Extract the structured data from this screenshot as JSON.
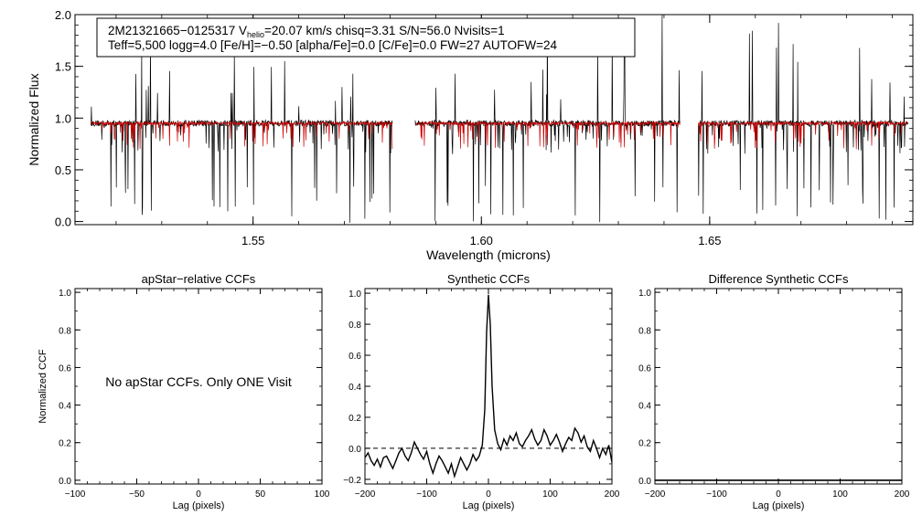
{
  "chart_data": [
    {
      "type": "line",
      "id": "spectrum",
      "xlabel": "Wavelength (microns)",
      "ylabel": "Normalized Flux",
      "xlim": [
        1.511,
        1.6945
      ],
      "ylim": [
        -0.03,
        2.0
      ],
      "xticks": [
        1.55,
        1.6,
        1.65
      ],
      "xtick_labels": [
        "1.55",
        "1.60",
        "1.65"
      ],
      "yticks": [
        0.0,
        0.5,
        1.0,
        1.5,
        2.0
      ],
      "ytick_labels": [
        "0.0",
        "0.5",
        "1.0",
        "1.5",
        "2.0"
      ],
      "chips": [
        [
          1.5145,
          1.5805
        ],
        [
          1.5855,
          1.6435
        ],
        [
          1.6475,
          1.6935
        ]
      ],
      "series": [
        {
          "name": "observed",
          "color": "#000000",
          "level": 0.95,
          "noise": 0.03
        },
        {
          "name": "synthetic",
          "color": "#d00000",
          "level": 0.95,
          "noise": 0.015
        }
      ],
      "annotation": {
        "line1_a": "2M21321665−0125317  V",
        "line1_sub": "helio",
        "line1_b": "=20.07 km/s  chisq=3.31  S/N=56.0  Nvisits=1",
        "line2": "Teff=5,500 logg=4.0 [Fe/H]=−0.50 [alpha/Fe]=0.0 [C/Fe]=0.0 FW=27 AUTOFW=24"
      }
    },
    {
      "type": "line",
      "id": "apstar-ccf",
      "title": "apStar−relative CCFs",
      "xlabel": "Lag (pixels)",
      "ylabel": "Normalized CCF",
      "xlim": [
        -100,
        100
      ],
      "ylim": [
        -0.02,
        1.02
      ],
      "xticks": [
        -100,
        -50,
        0,
        50,
        100
      ],
      "xtick_labels": [
        "−100",
        "−50",
        "0",
        "50",
        "100"
      ],
      "yticks": [
        0.0,
        0.2,
        0.4,
        0.6,
        0.8,
        1.0
      ],
      "ytick_labels": [
        "0.0",
        "0.2",
        "0.4",
        "0.6",
        "0.8",
        "1.0"
      ],
      "message": "No apStar CCFs.  Only ONE Visit"
    },
    {
      "type": "line",
      "id": "synthetic-ccf",
      "title": "Synthetic CCFs",
      "xlabel": "Lag (pixels)",
      "xlim": [
        -200,
        200
      ],
      "ylim": [
        -0.23,
        1.03
      ],
      "xticks": [
        -200,
        -100,
        0,
        100,
        200
      ],
      "xtick_labels": [
        "−200",
        "−100",
        "0",
        "100",
        "200"
      ],
      "yticks": [
        -0.2,
        0.0,
        0.2,
        0.4,
        0.6,
        0.8,
        1.0
      ],
      "ytick_labels": [
        "−0.2",
        "0.0",
        "0.2",
        "0.4",
        "0.6",
        "0.8",
        "1.0"
      ],
      "zero_line": 0.0,
      "series": [
        {
          "name": "ccf",
          "points": [
            [
              -200,
              -0.06
            ],
            [
              -195,
              -0.03
            ],
            [
              -190,
              -0.08
            ],
            [
              -185,
              -0.11
            ],
            [
              -180,
              -0.07
            ],
            [
              -175,
              -0.12
            ],
            [
              -170,
              -0.06
            ],
            [
              -165,
              -0.05
            ],
            [
              -160,
              -0.09
            ],
            [
              -155,
              -0.13
            ],
            [
              -150,
              -0.08
            ],
            [
              -145,
              -0.03
            ],
            [
              -140,
              0.0
            ],
            [
              -135,
              -0.05
            ],
            [
              -130,
              -0.08
            ],
            [
              -125,
              -0.03
            ],
            [
              -120,
              0.04
            ],
            [
              -115,
              0.0
            ],
            [
              -110,
              -0.04
            ],
            [
              -105,
              -0.07
            ],
            [
              -100,
              -0.02
            ],
            [
              -95,
              -0.1
            ],
            [
              -90,
              -0.16
            ],
            [
              -85,
              -0.1
            ],
            [
              -80,
              -0.05
            ],
            [
              -75,
              -0.08
            ],
            [
              -70,
              -0.12
            ],
            [
              -65,
              -0.16
            ],
            [
              -60,
              -0.1
            ],
            [
              -55,
              -0.18
            ],
            [
              -50,
              -0.12
            ],
            [
              -45,
              -0.06
            ],
            [
              -40,
              -0.1
            ],
            [
              -35,
              -0.14
            ],
            [
              -30,
              -0.1
            ],
            [
              -25,
              -0.04
            ],
            [
              -20,
              -0.08
            ],
            [
              -15,
              -0.05
            ],
            [
              -10,
              0.02
            ],
            [
              -6,
              0.25
            ],
            [
              -3,
              0.75
            ],
            [
              0,
              0.99
            ],
            [
              3,
              0.8
            ],
            [
              6,
              0.4
            ],
            [
              10,
              0.12
            ],
            [
              15,
              0.03
            ],
            [
              20,
              -0.01
            ],
            [
              25,
              0.06
            ],
            [
              30,
              0.02
            ],
            [
              35,
              0.08
            ],
            [
              40,
              0.05
            ],
            [
              45,
              0.1
            ],
            [
              50,
              0.03
            ],
            [
              55,
              0.01
            ],
            [
              60,
              0.05
            ],
            [
              65,
              0.08
            ],
            [
              70,
              0.12
            ],
            [
              75,
              0.06
            ],
            [
              80,
              0.02
            ],
            [
              85,
              0.05
            ],
            [
              90,
              0.12
            ],
            [
              95,
              0.08
            ],
            [
              100,
              0.02
            ],
            [
              105,
              0.05
            ],
            [
              110,
              0.09
            ],
            [
              115,
              0.04
            ],
            [
              120,
              -0.02
            ],
            [
              125,
              0.03
            ],
            [
              130,
              0.07
            ],
            [
              135,
              0.05
            ],
            [
              140,
              0.13
            ],
            [
              145,
              0.1
            ],
            [
              150,
              0.04
            ],
            [
              155,
              0.08
            ],
            [
              160,
              0.01
            ],
            [
              165,
              -0.02
            ],
            [
              170,
              0.05
            ],
            [
              175,
              0.0
            ],
            [
              180,
              -0.06
            ],
            [
              185,
              0.0
            ],
            [
              190,
              -0.04
            ],
            [
              195,
              0.02
            ],
            [
              200,
              -0.09
            ]
          ]
        }
      ]
    },
    {
      "type": "line",
      "id": "difference-ccf",
      "title": "Difference Synthetic CCFs",
      "xlabel": "Lag (pixels)",
      "xlim": [
        -200,
        200
      ],
      "ylim": [
        -0.02,
        1.02
      ],
      "xticks": [
        -200,
        -100,
        0,
        100,
        200
      ],
      "xtick_labels": [
        "−200",
        "−100",
        "0",
        "100",
        "200"
      ],
      "yticks": [
        0.0,
        0.2,
        0.4,
        0.6,
        0.8,
        1.0
      ],
      "ytick_labels": [
        "0.0",
        "0.2",
        "0.4",
        "0.6",
        "0.8",
        "1.0"
      ],
      "series": [
        {
          "name": "diff",
          "points": [
            [
              -200,
              0.0
            ],
            [
              200,
              0.0
            ]
          ]
        }
      ]
    }
  ]
}
